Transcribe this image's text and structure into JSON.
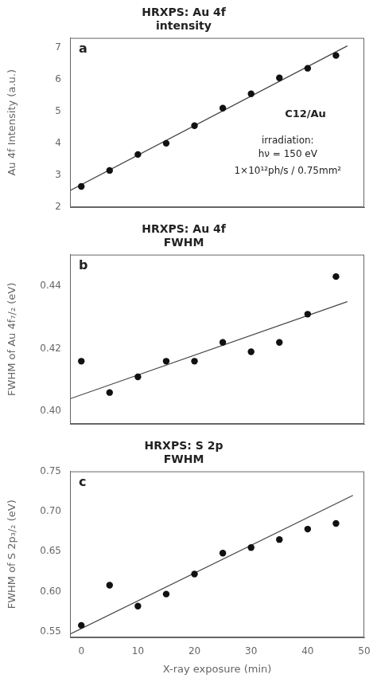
{
  "chart_data": [
    {
      "type": "scatter",
      "title": "HRXPS: Au 4f\nintensity",
      "y_label": "Au 4f Intensity (a.u.)",
      "annotations": [
        "a",
        "C12/Au",
        "irradiation:\nhν = 150 eV",
        "1×10¹²ph/s / 0.75mm²"
      ],
      "series": [
        {
          "type": "scatter",
          "color": "#111111",
          "marker": "circle",
          "x": [
            0,
            5,
            10,
            15,
            20,
            25,
            30,
            35,
            40,
            45
          ],
          "values": [
            2.65,
            3.15,
            3.65,
            4.0,
            4.55,
            5.1,
            5.55,
            6.05,
            6.35,
            6.75
          ]
        },
        {
          "type": "line",
          "color": "#444444",
          "line_style": "solid",
          "x": [
            -2,
            47
          ],
          "values": [
            2.52,
            7.05
          ]
        }
      ],
      "xlim": [
        -2,
        50
      ],
      "xticks": [
        0,
        10,
        20,
        30,
        40,
        50
      ],
      "ylim": [
        2.0,
        7.3
      ],
      "yticks": [
        2,
        3,
        4,
        5,
        6,
        7
      ],
      "tick_labels": "y",
      "grid": false,
      "legend": false
    },
    {
      "type": "scatter",
      "title": "HRXPS: Au 4f\nFWHM",
      "y_label": "FWHM of Au 4f₇/₂ (eV)",
      "annotations": [
        "b"
      ],
      "series": [
        {
          "type": "scatter",
          "color": "#111111",
          "marker": "circle",
          "x": [
            0,
            5,
            10,
            15,
            20,
            25,
            30,
            35,
            40,
            45
          ],
          "values": [
            0.416,
            0.406,
            0.411,
            0.416,
            0.416,
            0.422,
            0.419,
            0.422,
            0.431,
            0.443
          ]
        },
        {
          "type": "line",
          "color": "#444444",
          "line_style": "solid",
          "x": [
            -2,
            47
          ],
          "values": [
            0.404,
            0.435
          ]
        }
      ],
      "xlim": [
        -2,
        50
      ],
      "xticks": [
        0,
        10,
        20,
        30,
        40,
        50
      ],
      "ylim": [
        0.396,
        0.45
      ],
      "yticks": [
        {
          "value": 0.4,
          "label": "0.40"
        },
        {
          "value": 0.42,
          "label": "0.42"
        },
        {
          "value": 0.44,
          "label": "0.44"
        }
      ],
      "tick_labels": "y",
      "grid": false,
      "legend": false
    },
    {
      "type": "scatter",
      "title": "HRXPS: S 2p\nFWHM",
      "x_label": "X-ray exposure (min)",
      "y_label": "FWHM of S 2p₃/₂ (eV)",
      "annotations": [
        "c"
      ],
      "series": [
        {
          "type": "scatter",
          "color": "#111111",
          "marker": "circle",
          "x": [
            0,
            5,
            10,
            15,
            20,
            25,
            30,
            35,
            40,
            45
          ],
          "values": [
            0.558,
            0.608,
            0.582,
            0.597,
            0.622,
            0.648,
            0.655,
            0.665,
            0.678,
            0.685
          ]
        },
        {
          "type": "line",
          "color": "#444444",
          "line_style": "solid",
          "x": [
            -2,
            48
          ],
          "values": [
            0.547,
            0.72
          ]
        }
      ],
      "xlim": [
        -2,
        50
      ],
      "xticks": [
        0,
        10,
        20,
        30,
        40,
        50
      ],
      "ylim": [
        0.543,
        0.75
      ],
      "yticks": [
        0.55,
        {
          "value": 0.6,
          "label": "0.60"
        },
        0.65,
        {
          "value": 0.7,
          "label": "0.70"
        },
        0.75
      ],
      "grid": false,
      "legend": false
    }
  ]
}
